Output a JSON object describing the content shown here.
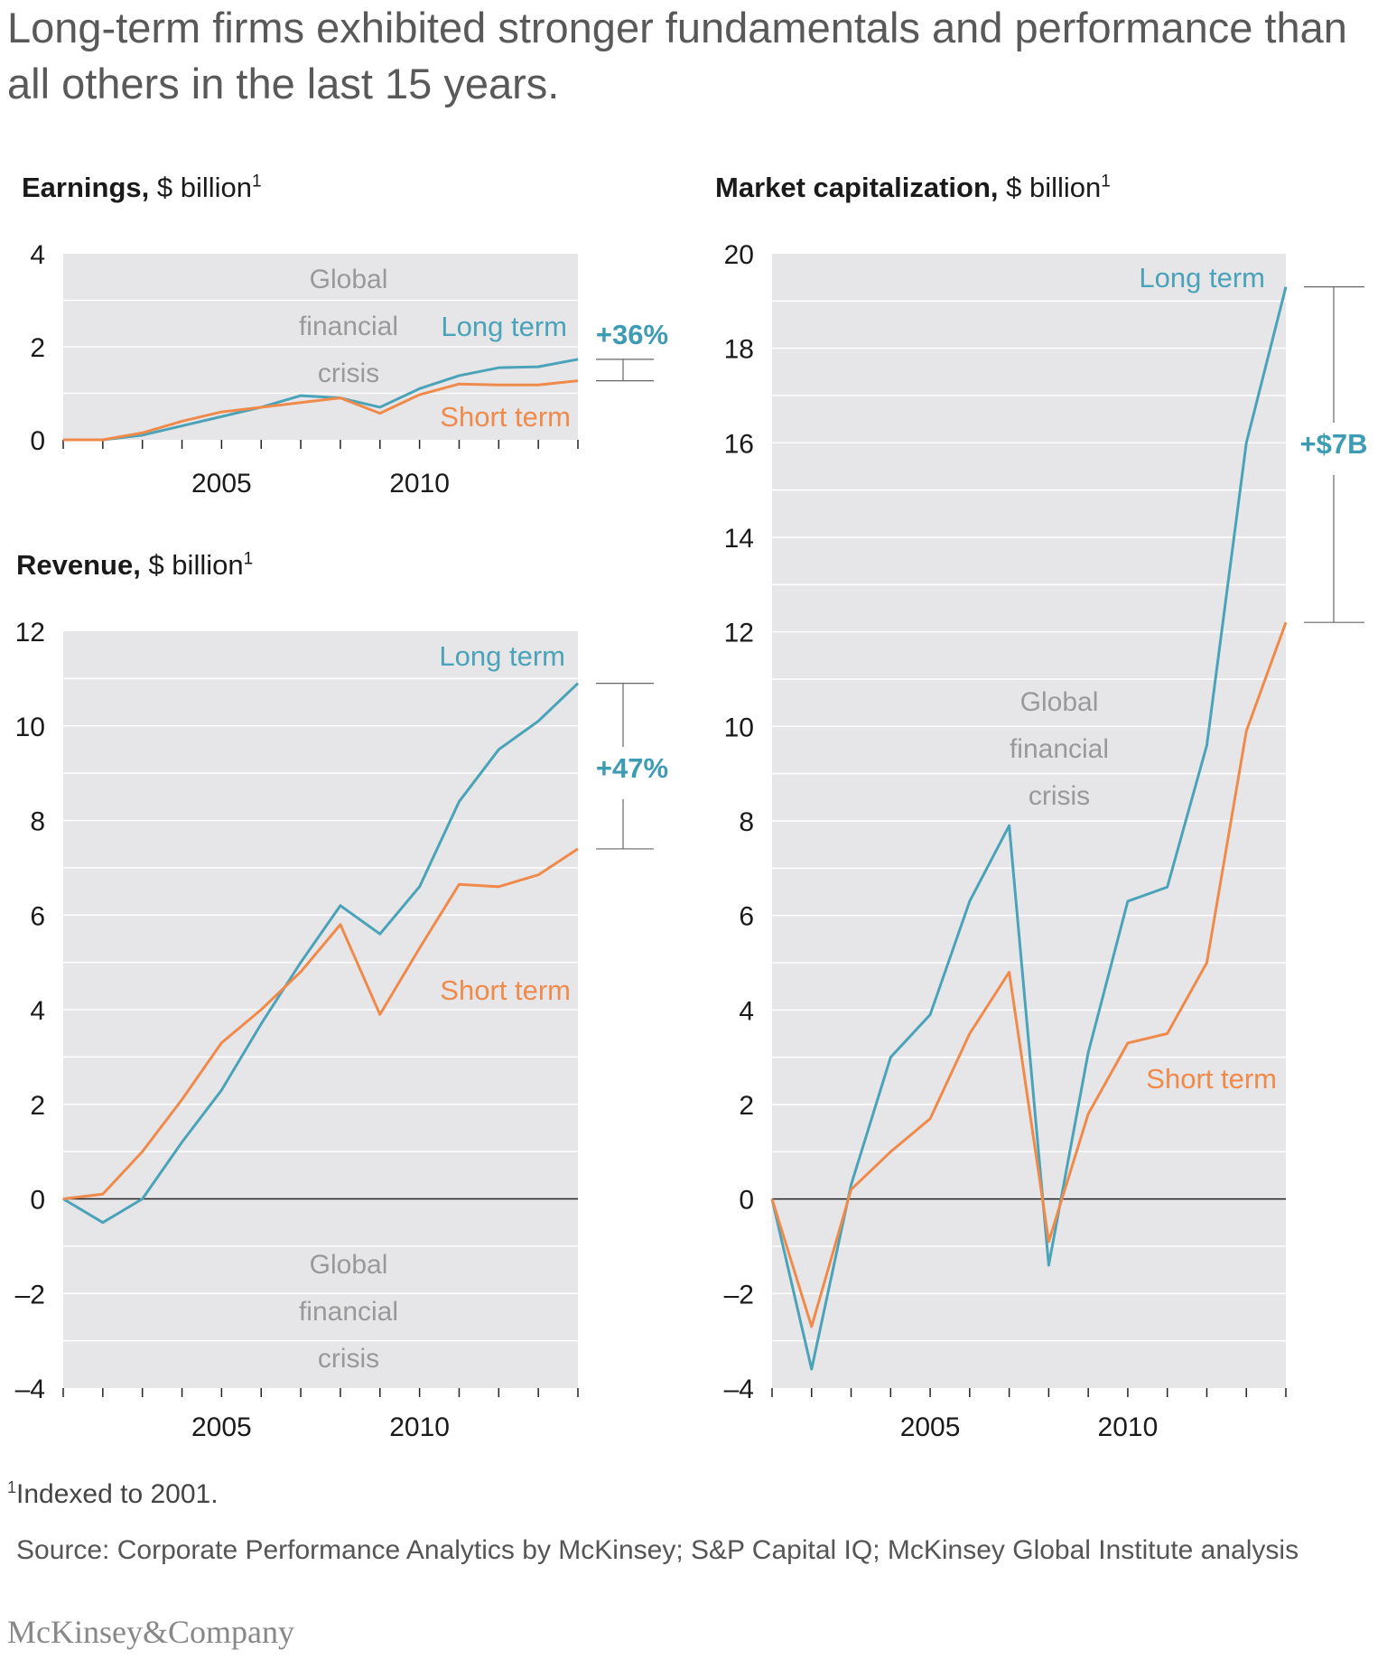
{
  "title": "Long-term firms exhibited stronger fundamentals and performance than all others in the last 15 years.",
  "footnote": {
    "marker": "1",
    "text": "Indexed to 2001."
  },
  "source": "Source: Corporate Performance Analytics by McKinsey; S&P Capital IQ; McKinsey Global Institute analysis",
  "logo": "McKinsey&Company",
  "colors": {
    "long_term": "#4aa3b8",
    "short_term": "#f08a4b",
    "plot_bg": "#e6e6e8",
    "grid": "#ffffff",
    "annotation": "#999999",
    "delta": "#3d9bb3"
  },
  "chart_data": [
    {
      "id": "earnings",
      "type": "line",
      "heading_bold": "Earnings,",
      "heading_unit": " $ billion",
      "heading_sup": "1",
      "x": [
        2001,
        2002,
        2003,
        2004,
        2005,
        2006,
        2007,
        2008,
        2009,
        2010,
        2011,
        2012,
        2013,
        2014
      ],
      "ylim": [
        0,
        4
      ],
      "yticks": [
        0,
        2,
        4
      ],
      "xtick_labels": [
        2005,
        2010
      ],
      "grid": true,
      "series": [
        {
          "name": "Long term",
          "key": "long_term",
          "values": [
            0,
            0,
            0.1,
            0.3,
            0.5,
            0.7,
            0.95,
            0.9,
            0.7,
            1.1,
            1.38,
            1.55,
            1.57,
            1.73
          ]
        },
        {
          "name": "Short term",
          "key": "short_term",
          "values": [
            0,
            0,
            0.15,
            0.4,
            0.6,
            0.7,
            0.8,
            0.9,
            0.57,
            0.97,
            1.2,
            1.18,
            1.18,
            1.27
          ]
        }
      ],
      "annotation": [
        "Global",
        "financial",
        "crisis"
      ],
      "delta_label": "+36%"
    },
    {
      "id": "revenue",
      "type": "line",
      "heading_bold": "Revenue,",
      "heading_unit": " $ billion",
      "heading_sup": "1",
      "x": [
        2001,
        2002,
        2003,
        2004,
        2005,
        2006,
        2007,
        2008,
        2009,
        2010,
        2011,
        2012,
        2013,
        2014
      ],
      "ylim": [
        -4,
        12
      ],
      "yticks": [
        -4,
        -2,
        0,
        2,
        4,
        6,
        8,
        10,
        12
      ],
      "xtick_labels": [
        2005,
        2010
      ],
      "grid": true,
      "series": [
        {
          "name": "Long term",
          "key": "long_term",
          "values": [
            0,
            -0.5,
            0,
            1.2,
            2.3,
            3.7,
            5.0,
            6.2,
            5.6,
            6.6,
            8.4,
            9.5,
            10.1,
            10.9
          ]
        },
        {
          "name": "Short term",
          "key": "short_term",
          "values": [
            0,
            0.1,
            1.0,
            2.1,
            3.3,
            4.0,
            4.8,
            5.8,
            3.9,
            5.3,
            6.65,
            6.6,
            6.85,
            7.4
          ]
        }
      ],
      "annotation": [
        "Global",
        "financial",
        "crisis"
      ],
      "delta_label": "+47%"
    },
    {
      "id": "market_cap",
      "type": "line",
      "heading_bold": "Market capitalization,",
      "heading_unit": " $ billion",
      "heading_sup": "1",
      "x": [
        2001,
        2002,
        2003,
        2004,
        2005,
        2006,
        2007,
        2008,
        2009,
        2010,
        2011,
        2012,
        2013,
        2014
      ],
      "ylim": [
        -4,
        20
      ],
      "yticks": [
        -4,
        -2,
        0,
        2,
        4,
        6,
        8,
        10,
        12,
        14,
        16,
        18,
        20
      ],
      "xtick_labels": [
        2005,
        2010
      ],
      "grid": true,
      "series": [
        {
          "name": "Long term",
          "key": "long_term",
          "values": [
            0,
            -3.6,
            0.3,
            3.0,
            3.9,
            6.3,
            7.9,
            -1.4,
            3.1,
            6.3,
            6.6,
            9.6,
            16.0,
            19.3
          ]
        },
        {
          "name": "Short term",
          "key": "short_term",
          "values": [
            0,
            -2.7,
            0.2,
            1.0,
            1.7,
            3.5,
            4.8,
            -0.9,
            1.8,
            3.3,
            3.5,
            5.0,
            9.9,
            12.2
          ]
        }
      ],
      "annotation": [
        "Global",
        "financial",
        "crisis"
      ],
      "delta_label": "+$7B"
    }
  ]
}
